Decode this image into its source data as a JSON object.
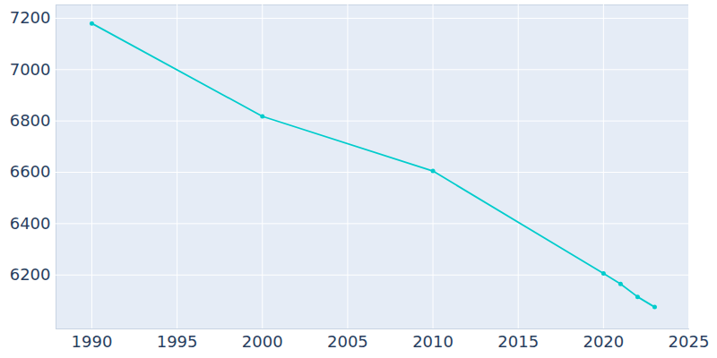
{
  "chart_data": {
    "type": "line",
    "x": [
      1990,
      2000,
      2010,
      2020,
      2021,
      2022,
      2023
    ],
    "values": [
      7180,
      6818,
      6605,
      6206,
      6165,
      6115,
      6075
    ],
    "color": "#00cccc",
    "marker": "circle",
    "xlim": [
      1987.9,
      2025
    ],
    "xticks": [
      1990,
      1995,
      2000,
      2005,
      2010,
      2015,
      2020,
      2025
    ],
    "ylim": [
      5990,
      7252
    ],
    "yticks": [
      6200,
      6400,
      6600,
      6800,
      7000,
      7200
    ],
    "grid": true
  }
}
